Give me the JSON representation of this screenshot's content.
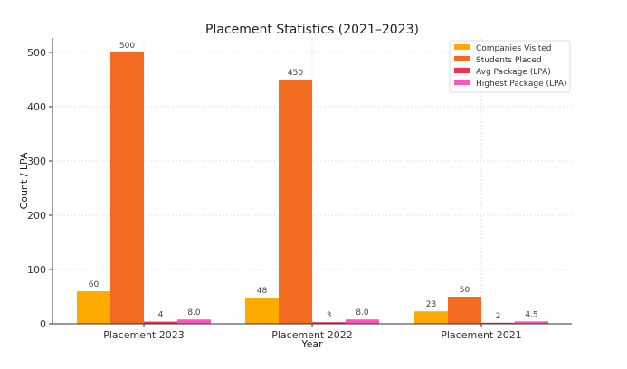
{
  "chart_data": {
    "type": "bar",
    "title": "Placement Statistics (2021–2023)",
    "xlabel": "Year",
    "ylabel": "Count / LPA",
    "ylim": [
      0,
      525
    ],
    "yticks": [
      0,
      100,
      200,
      300,
      400,
      500
    ],
    "grid": true,
    "legend_position": "top-right",
    "categories": [
      "Placement 2023",
      "Placement 2022",
      "Placement 2021"
    ],
    "series": [
      {
        "name": "Companies Visited",
        "color": "#FFAA00",
        "values": [
          60,
          48,
          23
        ],
        "labels": [
          "60",
          "48",
          "23"
        ]
      },
      {
        "name": "Students Placed",
        "color": "#F26B21",
        "values": [
          500,
          450,
          50
        ],
        "labels": [
          "500",
          "450",
          "50"
        ]
      },
      {
        "name": "Avg Package (LPA)",
        "color": "#F0304F",
        "values": [
          4,
          3,
          2
        ],
        "labels": [
          "4",
          "3",
          "2"
        ]
      },
      {
        "name": "Highest Package (LPA)",
        "color": "#FF55C0",
        "values": [
          8.0,
          8.0,
          4.5
        ],
        "labels": [
          "8.0",
          "8.0",
          "4.5"
        ]
      }
    ]
  }
}
